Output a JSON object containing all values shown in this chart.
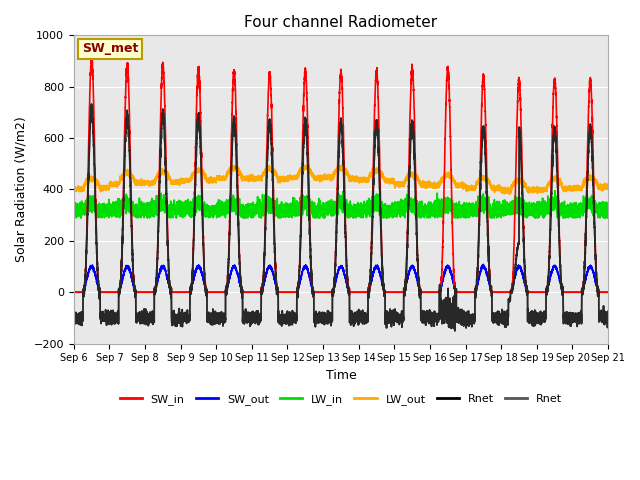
{
  "title": "Four channel Radiometer",
  "xlabel": "Time",
  "ylabel": "Solar Radiation (W/m2)",
  "ylim": [
    -200,
    1000
  ],
  "background_color": "#e8e8e8",
  "legend_label": "SW_met",
  "x_tick_labels": [
    "Sep 6",
    "Sep 7",
    "Sep 8",
    "Sep 9",
    "Sep 10",
    "Sep 11",
    "Sep 12",
    "Sep 13",
    "Sep 14",
    "Sep 15",
    "Sep 16",
    "Sep 17",
    "Sep 18",
    "Sep 19",
    "Sep 20",
    "Sep 21"
  ],
  "series": {
    "SW_in": {
      "color": "#ff0000",
      "lw": 1.2
    },
    "SW_out": {
      "color": "#0000ff",
      "lw": 1.2
    },
    "LW_in": {
      "color": "#00dd00",
      "lw": 1.2
    },
    "LW_out": {
      "color": "#ffaa00",
      "lw": 1.2
    },
    "Rnet1": {
      "color": "#000000",
      "lw": 1.2
    },
    "Rnet2": {
      "color": "#444444",
      "lw": 1.2
    }
  },
  "n_days": 15,
  "pts_per_day": 480,
  "ylim_min": -200,
  "ylim_max": 1000
}
